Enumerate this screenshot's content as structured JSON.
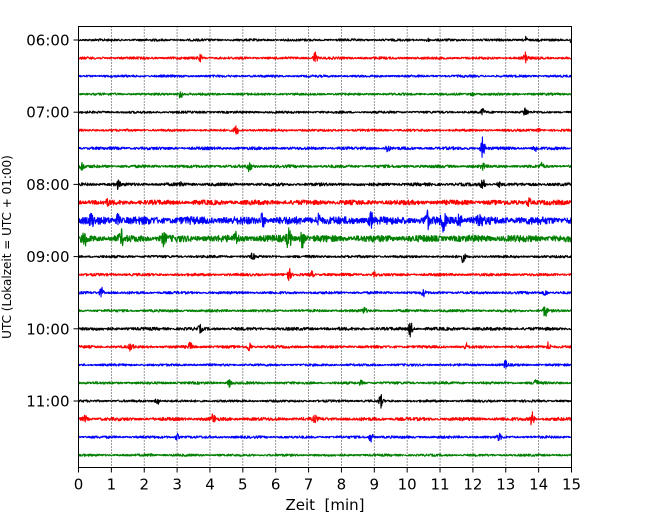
{
  "chart_data": {
    "type": "line",
    "title": "",
    "xlabel": "Zeit  [min]",
    "ylabel": "UTC (Lokalzeit = UTC + 01:00)",
    "xlim": [
      0,
      15
    ],
    "x_ticks": [
      "0",
      "1",
      "2",
      "3",
      "4",
      "5",
      "6",
      "7",
      "8",
      "9",
      "10",
      "11",
      "12",
      "13",
      "14",
      "15"
    ],
    "y_tick_labels": [
      "06:00",
      "07:00",
      "08:00",
      "09:00",
      "10:00",
      "11:00"
    ],
    "grid": "vertical-dotted",
    "trace_interval_minutes": 15,
    "colors": [
      "#000000",
      "#ff0000",
      "#0000ff",
      "#008000"
    ],
    "traces": [
      {
        "start": "06:00",
        "color": "#000000",
        "amp": 1.2,
        "events": [
          [
            10.6,
            2
          ],
          [
            13.6,
            3
          ],
          [
            15.0,
            3
          ]
        ]
      },
      {
        "start": "06:15",
        "color": "#ff0000",
        "amp": 1.3,
        "events": [
          [
            3.7,
            3
          ],
          [
            7.2,
            6
          ],
          [
            13.6,
            8
          ]
        ]
      },
      {
        "start": "06:30",
        "color": "#0000ff",
        "amp": 1.2,
        "events": []
      },
      {
        "start": "06:45",
        "color": "#008000",
        "amp": 1.2,
        "events": [
          [
            3.1,
            5
          ],
          [
            12.0,
            2
          ]
        ]
      },
      {
        "start": "07:00",
        "color": "#000000",
        "amp": 1.2,
        "events": [
          [
            12.3,
            3
          ],
          [
            13.6,
            5
          ]
        ]
      },
      {
        "start": "07:15",
        "color": "#ff0000",
        "amp": 1.2,
        "events": [
          [
            4.8,
            5
          ],
          [
            14.0,
            2
          ]
        ]
      },
      {
        "start": "07:30",
        "color": "#0000ff",
        "amp": 1.5,
        "events": [
          [
            9.4,
            4
          ],
          [
            12.3,
            11
          ],
          [
            13.9,
            3
          ]
        ]
      },
      {
        "start": "07:45",
        "color": "#008000",
        "amp": 1.5,
        "events": [
          [
            0.1,
            4
          ],
          [
            5.2,
            5
          ],
          [
            12.3,
            3
          ],
          [
            14.1,
            3
          ]
        ]
      },
      {
        "start": "08:00",
        "color": "#000000",
        "amp": 1.6,
        "events": [
          [
            1.2,
            4
          ],
          [
            3.1,
            3
          ],
          [
            12.3,
            5
          ],
          [
            12.8,
            2
          ]
        ]
      },
      {
        "start": "08:15",
        "color": "#ff0000",
        "amp": 2.5,
        "events": [
          [
            0.9,
            2
          ],
          [
            13.7,
            4
          ]
        ]
      },
      {
        "start": "08:30",
        "color": "#0000ff",
        "amp": 4.0,
        "events": [
          [
            0.4,
            6
          ],
          [
            1.2,
            5
          ],
          [
            5.6,
            7
          ],
          [
            7.3,
            7
          ],
          [
            8.9,
            8
          ],
          [
            10.6,
            9
          ],
          [
            11.1,
            10
          ],
          [
            11.6,
            10
          ],
          [
            12.2,
            10
          ]
        ]
      },
      {
        "start": "08:45",
        "color": "#008000",
        "amp": 3.5,
        "events": [
          [
            0.2,
            6
          ],
          [
            1.3,
            7
          ],
          [
            2.6,
            6
          ],
          [
            4.8,
            6
          ],
          [
            6.4,
            11
          ],
          [
            6.8,
            9
          ]
        ]
      },
      {
        "start": "09:00",
        "color": "#000000",
        "amp": 1.3,
        "events": [
          [
            5.3,
            3
          ],
          [
            11.7,
            5
          ]
        ]
      },
      {
        "start": "09:15",
        "color": "#ff0000",
        "amp": 1.4,
        "events": [
          [
            6.4,
            6
          ],
          [
            7.1,
            3
          ],
          [
            9.0,
            2
          ]
        ]
      },
      {
        "start": "09:30",
        "color": "#0000ff",
        "amp": 1.3,
        "events": [
          [
            0.7,
            5
          ],
          [
            10.5,
            3
          ],
          [
            14.2,
            3
          ]
        ]
      },
      {
        "start": "09:45",
        "color": "#008000",
        "amp": 1.3,
        "events": [
          [
            8.7,
            3
          ],
          [
            14.2,
            6
          ]
        ]
      },
      {
        "start": "10:00",
        "color": "#000000",
        "amp": 1.6,
        "events": [
          [
            3.7,
            3
          ],
          [
            10.1,
            7
          ]
        ]
      },
      {
        "start": "10:15",
        "color": "#ff0000",
        "amp": 1.4,
        "events": [
          [
            1.6,
            4
          ],
          [
            3.4,
            4
          ],
          [
            5.2,
            5
          ],
          [
            11.8,
            3
          ],
          [
            14.3,
            5
          ]
        ]
      },
      {
        "start": "10:30",
        "color": "#0000ff",
        "amp": 1.2,
        "events": [
          [
            13.0,
            4
          ]
        ]
      },
      {
        "start": "10:45",
        "color": "#008000",
        "amp": 1.3,
        "events": [
          [
            4.6,
            4
          ],
          [
            8.6,
            2
          ],
          [
            13.9,
            5
          ]
        ]
      },
      {
        "start": "11:00",
        "color": "#000000",
        "amp": 1.2,
        "events": [
          [
            2.4,
            4
          ],
          [
            9.2,
            6
          ]
        ]
      },
      {
        "start": "11:15",
        "color": "#ff0000",
        "amp": 1.7,
        "events": [
          [
            0.2,
            3
          ],
          [
            4.1,
            5
          ],
          [
            7.2,
            3
          ],
          [
            13.8,
            7
          ]
        ]
      },
      {
        "start": "11:30",
        "color": "#0000ff",
        "amp": 1.3,
        "events": [
          [
            3.0,
            3
          ],
          [
            8.9,
            5
          ],
          [
            12.8,
            3
          ]
        ]
      },
      {
        "start": "11:45",
        "color": "#008000",
        "amp": 1.2,
        "events": [
          [
            2.2,
            2
          ]
        ]
      }
    ]
  }
}
